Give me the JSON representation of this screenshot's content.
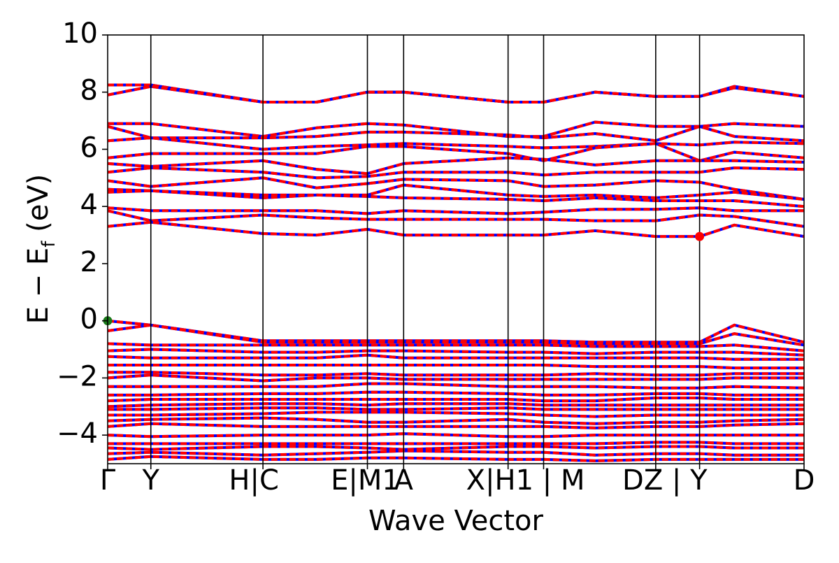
{
  "chart_data": {
    "type": "line",
    "title": "",
    "xlabel": "Wave Vector",
    "ylabel": "E − E_f (eV)",
    "ylabel_parts": {
      "main": "E − E",
      "sub": "f",
      "unit": " (eV)"
    },
    "ylim": [
      -5,
      10
    ],
    "yticks": [
      {
        "value": -4,
        "label": "−4"
      },
      {
        "value": -2,
        "label": "−2"
      },
      {
        "value": 0,
        "label": "0"
      },
      {
        "value": 2,
        "label": "2"
      },
      {
        "value": 4,
        "label": "4"
      },
      {
        "value": 6,
        "label": "6"
      },
      {
        "value": 8,
        "label": "8"
      },
      {
        "value": 10,
        "label": "10"
      }
    ],
    "grid": false,
    "legend": "none",
    "kpath": [
      {
        "pos": 0.0,
        "label": "Γ"
      },
      {
        "pos": 0.062,
        "label": "Y"
      },
      {
        "pos": 0.223,
        "label": "H|C"
      },
      {
        "pos": 0.373,
        "label": "E|M1"
      },
      {
        "pos": 0.425,
        "label": "A"
      },
      {
        "pos": 0.575,
        "label": "X|H1"
      },
      {
        "pos": 0.626,
        "label": "|M"
      },
      {
        "pos": 0.787,
        "label": "D"
      },
      {
        "pos": 0.85,
        "label": "Z|Y"
      },
      {
        "pos": 1.0,
        "label": "D"
      }
    ],
    "tick_labels": [
      {
        "pos": 0.0,
        "text": "Γ"
      },
      {
        "pos": 0.062,
        "text": "Y"
      },
      {
        "pos": 0.21,
        "text": "H|C"
      },
      {
        "pos": 0.37,
        "text": "E|M1"
      },
      {
        "pos": 0.425,
        "text": "A"
      },
      {
        "pos": 0.6,
        "text": "X|H1 | M"
      },
      {
        "pos": 0.8,
        "text": "DZ | Y"
      },
      {
        "pos": 1.0,
        "text": "D"
      }
    ],
    "special_points": [
      {
        "name": "VBM",
        "x": 0.0,
        "y": 0.0,
        "color": "#1a7a1a"
      },
      {
        "name": "CBM",
        "x": 0.85,
        "y": 2.95,
        "color": "#ff0000"
      }
    ],
    "series": [
      {
        "values": [
          8.25,
          8.25,
          7.65,
          7.65,
          8.0,
          8.0,
          7.65,
          7.65,
          8.0,
          7.85,
          7.85,
          8.2,
          7.85
        ]
      },
      {
        "values": [
          7.9,
          8.2,
          7.65,
          7.65,
          8.0,
          8.0,
          7.65,
          7.65,
          8.0,
          7.85,
          7.85,
          8.15,
          7.85
        ]
      },
      {
        "values": [
          6.9,
          6.9,
          6.45,
          6.75,
          6.9,
          6.85,
          6.45,
          6.45,
          6.95,
          6.8,
          6.8,
          6.9,
          6.8
        ]
      },
      {
        "values": [
          6.8,
          6.4,
          6.4,
          6.45,
          6.6,
          6.6,
          6.5,
          6.4,
          6.55,
          6.3,
          6.8,
          6.45,
          6.3
        ]
      },
      {
        "values": [
          6.3,
          6.4,
          6.0,
          6.1,
          6.15,
          6.2,
          6.1,
          6.05,
          6.1,
          6.2,
          6.15,
          6.25,
          6.2
        ]
      },
      {
        "values": [
          5.7,
          5.85,
          5.85,
          5.85,
          6.1,
          6.1,
          5.85,
          5.6,
          6.05,
          6.2,
          5.6,
          5.9,
          5.7
        ]
      },
      {
        "values": [
          5.5,
          5.4,
          5.6,
          5.3,
          5.15,
          5.5,
          5.7,
          5.65,
          5.45,
          5.6,
          5.6,
          5.6,
          5.55
        ]
      },
      {
        "values": [
          5.2,
          5.35,
          5.2,
          5.0,
          5.05,
          5.2,
          5.2,
          5.1,
          5.2,
          5.2,
          5.2,
          5.35,
          5.3
        ]
      },
      {
        "values": [
          4.9,
          4.7,
          5.0,
          4.65,
          4.8,
          4.95,
          4.9,
          4.7,
          4.75,
          4.9,
          4.85,
          4.6,
          4.25
        ]
      },
      {
        "values": [
          4.6,
          4.55,
          4.4,
          4.4,
          4.4,
          4.75,
          4.4,
          4.35,
          4.4,
          4.3,
          4.4,
          4.5,
          4.25
        ]
      },
      {
        "values": [
          4.5,
          4.55,
          4.3,
          4.4,
          4.35,
          4.3,
          4.25,
          4.2,
          4.3,
          4.2,
          4.2,
          4.2,
          4.0
        ]
      },
      {
        "values": [
          3.95,
          3.85,
          3.85,
          3.85,
          3.75,
          3.85,
          3.75,
          3.8,
          3.9,
          3.9,
          3.95,
          3.85,
          3.85
        ]
      },
      {
        "values": [
          3.85,
          3.5,
          3.7,
          3.6,
          3.55,
          3.55,
          3.55,
          3.55,
          3.5,
          3.5,
          3.7,
          3.65,
          3.3
        ]
      },
      {
        "values": [
          3.3,
          3.45,
          3.05,
          3.0,
          3.2,
          3.0,
          3.0,
          3.0,
          3.15,
          2.95,
          2.95,
          3.35,
          2.95
        ]
      },
      {
        "values": [
          0.0,
          -0.15,
          -0.7,
          -0.7,
          -0.7,
          -0.7,
          -0.7,
          -0.7,
          -0.75,
          -0.75,
          -0.75,
          -0.15,
          -0.75
        ]
      },
      {
        "values": [
          -0.35,
          -0.15,
          -0.75,
          -0.75,
          -0.75,
          -0.75,
          -0.75,
          -0.75,
          -0.8,
          -0.8,
          -0.8,
          -0.45,
          -0.85
        ]
      },
      {
        "values": [
          -0.8,
          -0.85,
          -0.85,
          -0.85,
          -0.85,
          -0.85,
          -0.85,
          -0.85,
          -0.9,
          -0.9,
          -0.9,
          -0.85,
          -1.05
        ]
      },
      {
        "values": [
          -1.05,
          -1.0,
          -1.1,
          -1.1,
          -1.05,
          -1.05,
          -1.1,
          -1.1,
          -1.15,
          -1.1,
          -1.1,
          -1.1,
          -1.2
        ]
      },
      {
        "values": [
          -1.25,
          -1.3,
          -1.3,
          -1.3,
          -1.2,
          -1.3,
          -1.3,
          -1.3,
          -1.3,
          -1.3,
          -1.3,
          -1.35,
          -1.35
        ]
      },
      {
        "values": [
          -1.55,
          -1.55,
          -1.55,
          -1.55,
          -1.55,
          -1.55,
          -1.55,
          -1.55,
          -1.6,
          -1.6,
          -1.6,
          -1.65,
          -1.65
        ]
      },
      {
        "values": [
          -1.8,
          -1.8,
          -1.9,
          -1.9,
          -1.85,
          -1.9,
          -1.9,
          -1.9,
          -1.85,
          -1.9,
          -1.9,
          -1.85,
          -1.85
        ]
      },
      {
        "values": [
          -2.0,
          -1.9,
          -2.1,
          -2.0,
          -2.0,
          -2.05,
          -2.05,
          -2.05,
          -2.05,
          -2.05,
          -2.05,
          -2.0,
          -2.0
        ]
      },
      {
        "values": [
          -2.3,
          -2.3,
          -2.3,
          -2.3,
          -2.2,
          -2.2,
          -2.3,
          -2.3,
          -2.3,
          -2.35,
          -2.35,
          -2.3,
          -2.35
        ]
      },
      {
        "values": [
          -2.6,
          -2.6,
          -2.55,
          -2.55,
          -2.5,
          -2.5,
          -2.55,
          -2.6,
          -2.6,
          -2.55,
          -2.55,
          -2.6,
          -2.6
        ]
      },
      {
        "values": [
          -2.8,
          -2.75,
          -2.75,
          -2.75,
          -2.75,
          -2.75,
          -2.75,
          -2.8,
          -2.8,
          -2.7,
          -2.7,
          -2.75,
          -2.75
        ]
      },
      {
        "values": [
          -3.0,
          -2.95,
          -2.9,
          -2.9,
          -2.95,
          -2.9,
          -2.9,
          -2.95,
          -2.95,
          -2.95,
          -2.95,
          -2.95,
          -2.95
        ]
      },
      {
        "values": [
          -3.1,
          -3.1,
          -3.05,
          -3.05,
          -3.1,
          -3.1,
          -3.05,
          -3.1,
          -3.1,
          -3.1,
          -3.1,
          -3.1,
          -3.1
        ]
      },
      {
        "values": [
          -3.3,
          -3.3,
          -3.25,
          -3.2,
          -3.2,
          -3.2,
          -3.25,
          -3.3,
          -3.35,
          -3.3,
          -3.3,
          -3.3,
          -3.3
        ]
      },
      {
        "values": [
          -3.5,
          -3.45,
          -3.4,
          -3.45,
          -3.55,
          -3.55,
          -3.45,
          -3.55,
          -3.6,
          -3.55,
          -3.55,
          -3.5,
          -3.45
        ]
      },
      {
        "values": [
          -3.7,
          -3.6,
          -3.7,
          -3.7,
          -3.7,
          -3.7,
          -3.7,
          -3.7,
          -3.75,
          -3.7,
          -3.7,
          -3.65,
          -3.6
        ]
      },
      {
        "values": [
          -4.0,
          -4.05,
          -4.0,
          -4.0,
          -4.0,
          -3.95,
          -4.05,
          -4.05,
          -4.0,
          -4.0,
          -4.0,
          -4.0,
          -4.0
        ]
      },
      {
        "values": [
          -4.3,
          -4.3,
          -4.3,
          -4.3,
          -4.3,
          -4.3,
          -4.3,
          -4.3,
          -4.3,
          -4.25,
          -4.25,
          -4.3,
          -4.3
        ]
      },
      {
        "values": [
          -4.45,
          -4.5,
          -4.4,
          -4.4,
          -4.45,
          -4.5,
          -4.4,
          -4.4,
          -4.45,
          -4.4,
          -4.4,
          -4.45,
          -4.45
        ]
      },
      {
        "values": [
          -4.65,
          -4.6,
          -4.7,
          -4.65,
          -4.6,
          -4.55,
          -4.6,
          -4.6,
          -4.7,
          -4.65,
          -4.65,
          -4.7,
          -4.7
        ]
      },
      {
        "values": [
          -4.85,
          -4.75,
          -4.85,
          -4.85,
          -4.8,
          -4.8,
          -4.85,
          -4.85,
          -4.9,
          -4.85,
          -4.85,
          -4.85,
          -4.85
        ]
      }
    ],
    "series_x": [
      0.0,
      0.062,
      0.223,
      0.3,
      0.373,
      0.425,
      0.575,
      0.626,
      0.7,
      0.787,
      0.85,
      0.9,
      1.0
    ],
    "line_colors": {
      "primary": "#ff0000",
      "secondary": "#0000ff"
    }
  }
}
